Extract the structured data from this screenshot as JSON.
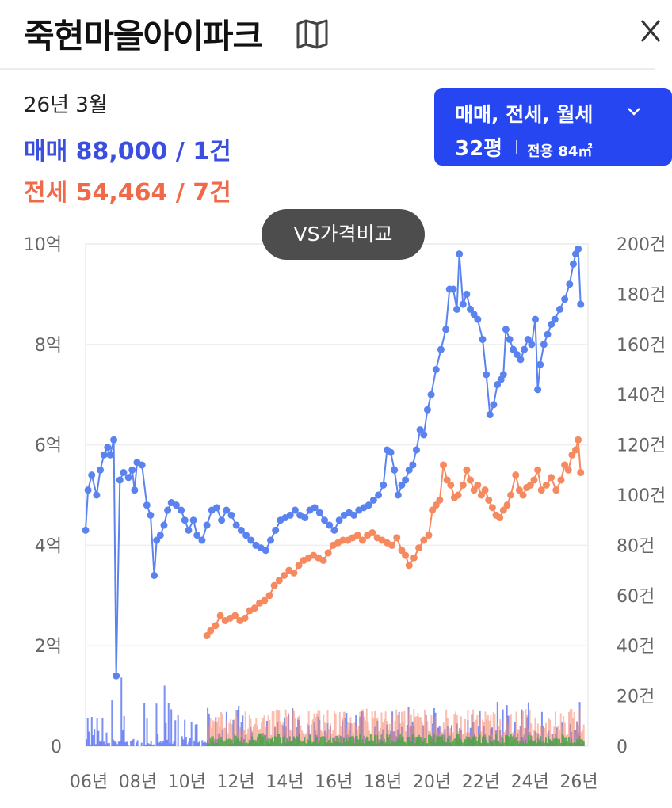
{
  "header": {
    "title": "죽현마을아이파크",
    "map_icon": "map-icon",
    "close_icon": "close-icon"
  },
  "summary": {
    "period": "26년 3월",
    "sale": "매매 88,000 / 1건",
    "jeonse": "전세 54,464 / 7건"
  },
  "filter": {
    "trade_types": "매매, 전세, 월세",
    "area": "32평",
    "exclusive": "전용 84㎡",
    "accent_color": "#2546f0"
  },
  "compare_button": {
    "label": "VS가격비교"
  },
  "chart_data": {
    "type": "line",
    "x_tick_labels": [
      "06년",
      "08년",
      "10년",
      "12년",
      "14년",
      "16년",
      "18년",
      "20년",
      "22년",
      "24년",
      "26년"
    ],
    "x_range": [
      2006,
      2026.5
    ],
    "y_left": {
      "ticks": [
        "0",
        "2억",
        "4억",
        "6억",
        "8억",
        "10억"
      ],
      "range": [
        0,
        10
      ]
    },
    "y_right": {
      "ticks": [
        "0",
        "20건",
        "40건",
        "60건",
        "80건",
        "100건",
        "120건",
        "140건",
        "160건",
        "180건",
        "200건"
      ],
      "range": [
        0,
        200
      ]
    },
    "grid": true,
    "series": [
      {
        "color": "#5b83f0",
        "axis": "left",
        "points": [
          [
            2006.0,
            4.3
          ],
          [
            2006.1,
            5.1
          ],
          [
            2006.25,
            5.4
          ],
          [
            2006.45,
            5.0
          ],
          [
            2006.6,
            5.5
          ],
          [
            2006.75,
            5.8
          ],
          [
            2006.9,
            5.95
          ],
          [
            2007.0,
            5.8
          ],
          [
            2007.15,
            6.1
          ],
          [
            2007.25,
            1.4
          ],
          [
            2007.4,
            5.3
          ],
          [
            2007.55,
            5.45
          ],
          [
            2007.75,
            5.35
          ],
          [
            2007.9,
            5.5
          ],
          [
            2008.0,
            5.1
          ],
          [
            2008.1,
            5.65
          ],
          [
            2008.3,
            5.6
          ],
          [
            2008.5,
            4.8
          ],
          [
            2008.65,
            4.6
          ],
          [
            2008.8,
            3.4
          ],
          [
            2008.9,
            4.1
          ],
          [
            2009.05,
            4.2
          ],
          [
            2009.2,
            4.4
          ],
          [
            2009.35,
            4.7
          ],
          [
            2009.5,
            4.85
          ],
          [
            2009.7,
            4.8
          ],
          [
            2009.9,
            4.7
          ],
          [
            2010.05,
            4.5
          ],
          [
            2010.2,
            4.3
          ],
          [
            2010.4,
            4.5
          ],
          [
            2010.55,
            4.2
          ],
          [
            2010.75,
            4.1
          ],
          [
            2010.95,
            4.4
          ],
          [
            2011.15,
            4.7
          ],
          [
            2011.35,
            4.75
          ],
          [
            2011.55,
            4.5
          ],
          [
            2011.75,
            4.7
          ],
          [
            2011.95,
            4.6
          ],
          [
            2012.15,
            4.4
          ],
          [
            2012.35,
            4.3
          ],
          [
            2012.55,
            4.2
          ],
          [
            2012.75,
            4.1
          ],
          [
            2012.95,
            4.0
          ],
          [
            2013.15,
            3.95
          ],
          [
            2013.35,
            3.9
          ],
          [
            2013.55,
            4.1
          ],
          [
            2013.75,
            4.3
          ],
          [
            2013.95,
            4.5
          ],
          [
            2014.15,
            4.55
          ],
          [
            2014.35,
            4.6
          ],
          [
            2014.55,
            4.7
          ],
          [
            2014.75,
            4.6
          ],
          [
            2014.95,
            4.55
          ],
          [
            2015.15,
            4.7
          ],
          [
            2015.35,
            4.75
          ],
          [
            2015.55,
            4.65
          ],
          [
            2015.75,
            4.5
          ],
          [
            2015.95,
            4.4
          ],
          [
            2016.15,
            4.3
          ],
          [
            2016.35,
            4.5
          ],
          [
            2016.55,
            4.6
          ],
          [
            2016.75,
            4.65
          ],
          [
            2016.95,
            4.6
          ],
          [
            2017.15,
            4.7
          ],
          [
            2017.35,
            4.75
          ],
          [
            2017.55,
            4.8
          ],
          [
            2017.75,
            4.9
          ],
          [
            2017.95,
            5.0
          ],
          [
            2018.15,
            5.2
          ],
          [
            2018.3,
            5.9
          ],
          [
            2018.45,
            5.85
          ],
          [
            2018.6,
            5.5
          ],
          [
            2018.75,
            5.0
          ],
          [
            2018.9,
            5.2
          ],
          [
            2019.05,
            5.3
          ],
          [
            2019.2,
            5.5
          ],
          [
            2019.35,
            5.6
          ],
          [
            2019.5,
            5.9
          ],
          [
            2019.65,
            6.3
          ],
          [
            2019.8,
            6.2
          ],
          [
            2019.95,
            6.7
          ],
          [
            2020.1,
            7.0
          ],
          [
            2020.3,
            7.5
          ],
          [
            2020.5,
            7.9
          ],
          [
            2020.7,
            8.3
          ],
          [
            2020.85,
            9.1
          ],
          [
            2021.0,
            9.1
          ],
          [
            2021.15,
            8.7
          ],
          [
            2021.25,
            9.8
          ],
          [
            2021.4,
            8.8
          ],
          [
            2021.55,
            9.0
          ],
          [
            2021.7,
            8.7
          ],
          [
            2021.85,
            8.6
          ],
          [
            2022.0,
            8.5
          ],
          [
            2022.2,
            8.1
          ],
          [
            2022.35,
            7.4
          ],
          [
            2022.5,
            6.6
          ],
          [
            2022.65,
            6.8
          ],
          [
            2022.8,
            7.2
          ],
          [
            2022.95,
            7.3
          ],
          [
            2023.05,
            7.4
          ],
          [
            2023.15,
            8.3
          ],
          [
            2023.3,
            8.1
          ],
          [
            2023.45,
            7.9
          ],
          [
            2023.6,
            7.8
          ],
          [
            2023.75,
            7.7
          ],
          [
            2023.9,
            7.9
          ],
          [
            2024.05,
            8.1
          ],
          [
            2024.2,
            8.0
          ],
          [
            2024.35,
            8.5
          ],
          [
            2024.45,
            7.1
          ],
          [
            2024.55,
            7.6
          ],
          [
            2024.7,
            8.0
          ],
          [
            2024.85,
            8.2
          ],
          [
            2025.0,
            8.4
          ],
          [
            2025.15,
            8.5
          ],
          [
            2025.35,
            8.7
          ],
          [
            2025.55,
            8.9
          ],
          [
            2025.75,
            9.2
          ],
          [
            2025.9,
            9.6
          ],
          [
            2026.0,
            9.8
          ],
          [
            2026.1,
            9.9
          ],
          [
            2026.2,
            8.8
          ]
        ]
      },
      {
        "color": "#f5895f",
        "axis": "left",
        "points": [
          [
            2010.95,
            2.2
          ],
          [
            2011.1,
            2.3
          ],
          [
            2011.3,
            2.4
          ],
          [
            2011.5,
            2.6
          ],
          [
            2011.7,
            2.5
          ],
          [
            2011.9,
            2.55
          ],
          [
            2012.1,
            2.6
          ],
          [
            2012.3,
            2.5
          ],
          [
            2012.5,
            2.55
          ],
          [
            2012.7,
            2.7
          ],
          [
            2012.9,
            2.75
          ],
          [
            2013.1,
            2.85
          ],
          [
            2013.3,
            2.9
          ],
          [
            2013.5,
            3.0
          ],
          [
            2013.7,
            3.2
          ],
          [
            2013.9,
            3.3
          ],
          [
            2014.1,
            3.4
          ],
          [
            2014.3,
            3.5
          ],
          [
            2014.5,
            3.45
          ],
          [
            2014.7,
            3.6
          ],
          [
            2014.9,
            3.7
          ],
          [
            2015.1,
            3.75
          ],
          [
            2015.3,
            3.8
          ],
          [
            2015.5,
            3.75
          ],
          [
            2015.7,
            3.7
          ],
          [
            2015.9,
            3.85
          ],
          [
            2016.1,
            4.0
          ],
          [
            2016.3,
            4.05
          ],
          [
            2016.5,
            4.1
          ],
          [
            2016.7,
            4.1
          ],
          [
            2016.9,
            4.15
          ],
          [
            2017.1,
            4.2
          ],
          [
            2017.3,
            4.1
          ],
          [
            2017.5,
            4.2
          ],
          [
            2017.7,
            4.25
          ],
          [
            2017.9,
            4.15
          ],
          [
            2018.1,
            4.1
          ],
          [
            2018.3,
            4.05
          ],
          [
            2018.5,
            4.0
          ],
          [
            2018.7,
            4.15
          ],
          [
            2018.9,
            3.9
          ],
          [
            2019.05,
            3.8
          ],
          [
            2019.2,
            3.6
          ],
          [
            2019.4,
            3.75
          ],
          [
            2019.6,
            3.95
          ],
          [
            2019.8,
            4.1
          ],
          [
            2020.0,
            4.2
          ],
          [
            2020.15,
            4.7
          ],
          [
            2020.3,
            4.8
          ],
          [
            2020.45,
            4.9
          ],
          [
            2020.6,
            5.6
          ],
          [
            2020.75,
            5.3
          ],
          [
            2020.9,
            5.2
          ],
          [
            2021.05,
            4.95
          ],
          [
            2021.2,
            5.0
          ],
          [
            2021.4,
            5.2
          ],
          [
            2021.55,
            5.5
          ],
          [
            2021.7,
            5.3
          ],
          [
            2021.85,
            5.1
          ],
          [
            2022.0,
            5.2
          ],
          [
            2022.15,
            5.0
          ],
          [
            2022.3,
            5.1
          ],
          [
            2022.45,
            4.9
          ],
          [
            2022.6,
            4.75
          ],
          [
            2022.75,
            4.6
          ],
          [
            2022.9,
            4.55
          ],
          [
            2023.05,
            4.7
          ],
          [
            2023.2,
            4.8
          ],
          [
            2023.35,
            5.0
          ],
          [
            2023.55,
            5.4
          ],
          [
            2023.7,
            5.1
          ],
          [
            2023.85,
            5.0
          ],
          [
            2024.0,
            5.15
          ],
          [
            2024.15,
            5.2
          ],
          [
            2024.3,
            5.3
          ],
          [
            2024.45,
            5.5
          ],
          [
            2024.6,
            5.1
          ],
          [
            2024.8,
            5.2
          ],
          [
            2025.0,
            5.35
          ],
          [
            2025.2,
            5.1
          ],
          [
            2025.4,
            5.3
          ],
          [
            2025.55,
            5.6
          ],
          [
            2025.7,
            5.5
          ],
          [
            2025.85,
            5.8
          ],
          [
            2026.0,
            5.9
          ],
          [
            2026.1,
            6.1
          ],
          [
            2026.2,
            5.45
          ]
        ]
      }
    ],
    "volume_bars": {
      "axis": "right",
      "colors": {
        "blue": "#4f6af2",
        "orange": "#f58a70",
        "green": "#3ea83e"
      },
      "note_range": [
        0,
        35
      ]
    }
  }
}
